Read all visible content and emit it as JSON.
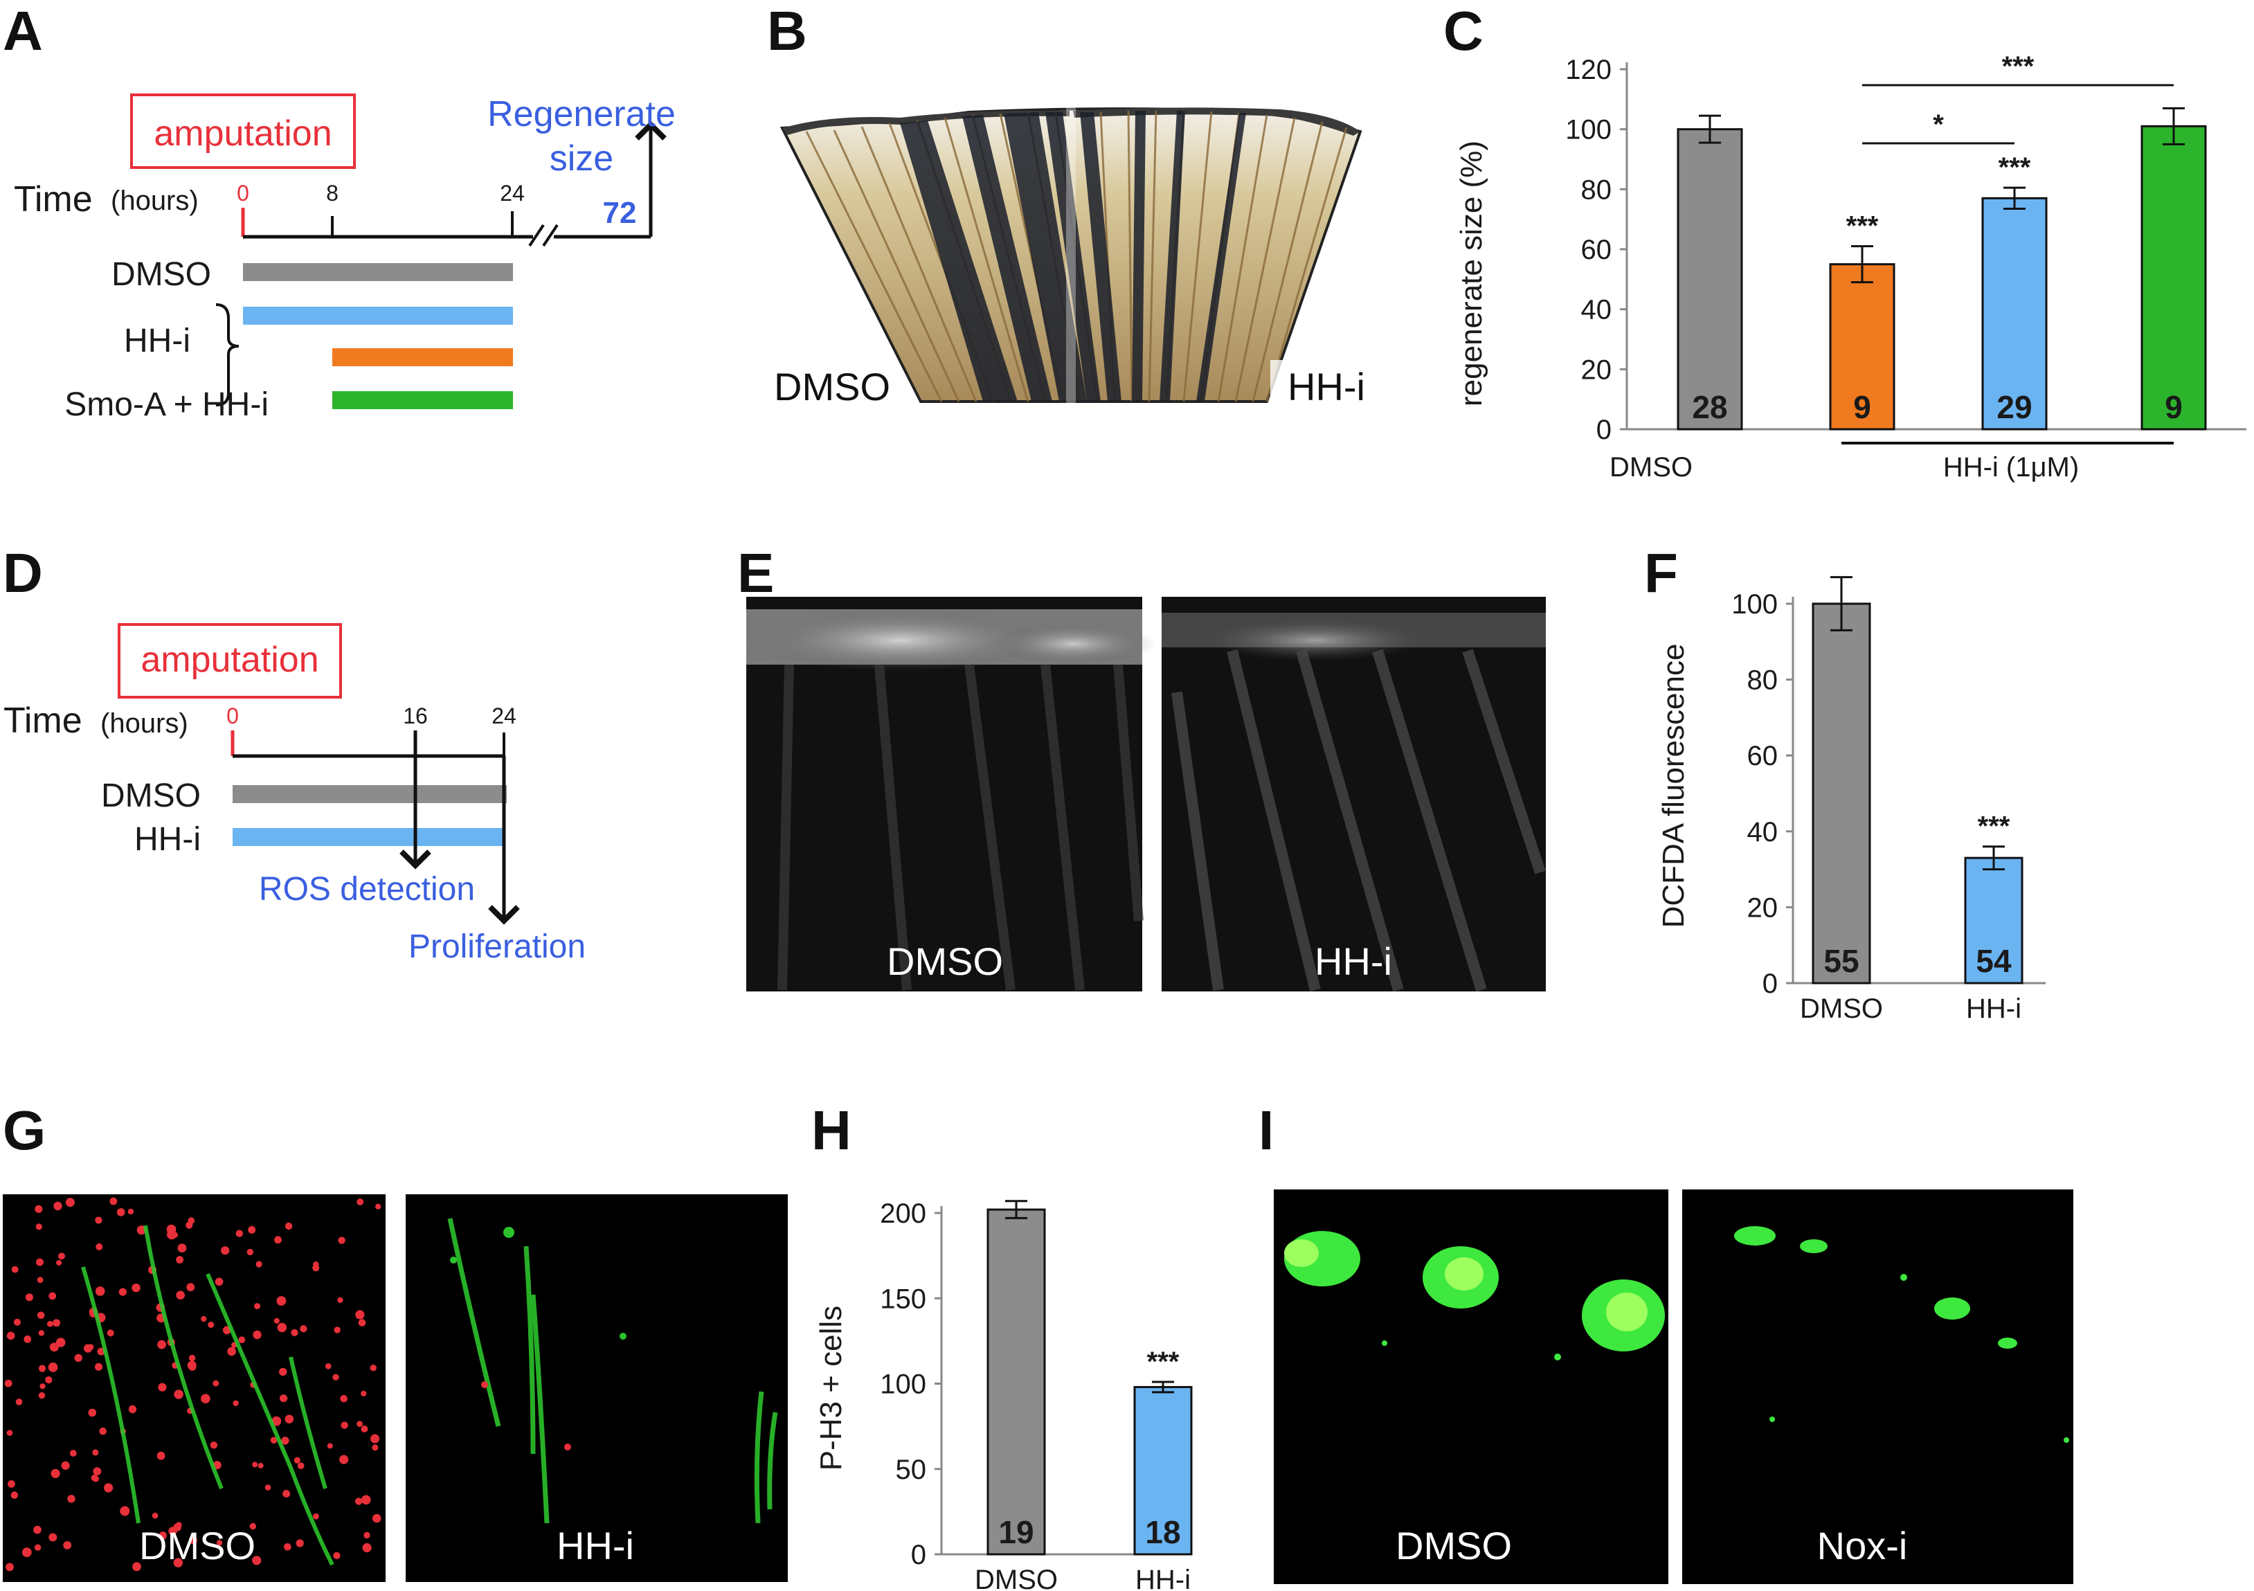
{
  "panel_labels": [
    "A",
    "B",
    "C",
    "D",
    "E",
    "F",
    "G",
    "H",
    "I"
  ],
  "panelA": {
    "event": "amputation",
    "time_label": "Time",
    "time_unit": "(hours)",
    "ticks": [
      "0",
      "8",
      "24",
      "72"
    ],
    "endpoint_line1": "Regenerate",
    "endpoint_line2": "size",
    "groups": [
      "DMSO",
      "HH-i",
      "Smo-A + HH-i"
    ],
    "colors": {
      "DMSO": "#8c8c8c",
      "HHi_full": "#6bb4f2",
      "HHi_late": "#f07a1f",
      "SmoA": "#2cb52c"
    }
  },
  "panelB": {
    "left_label": "DMSO",
    "right_label": "HH-i"
  },
  "panelD": {
    "event": "amputation",
    "time_label": "Time",
    "time_unit": "(hours)",
    "ticks": [
      "0",
      "16",
      "24"
    ],
    "groups": [
      "DMSO",
      "HH-i"
    ],
    "readout1": "ROS detection",
    "readout2": "Proliferation"
  },
  "panelE": {
    "left_label": "DMSO",
    "right_label": "HH-i"
  },
  "panelG": {
    "left_label": "DMSO",
    "right_label": "HH-i"
  },
  "panelI": {
    "left_label": "DMSO",
    "right_label": "Nox-i"
  },
  "chart_data": [
    {
      "panel": "C",
      "type": "bar",
      "ylabel": "regenerate size (%)",
      "ylim": [
        0,
        120
      ],
      "yticks": [
        0,
        20,
        40,
        60,
        80,
        100,
        120
      ],
      "categories": [
        "DMSO",
        "",
        "",
        ""
      ],
      "group_label": "HH-i (1μM)",
      "values": [
        100,
        55,
        77,
        101
      ],
      "errors": [
        4.5,
        6,
        3.5,
        6
      ],
      "n": [
        "28",
        "9",
        "29",
        "9"
      ],
      "colors": [
        "#8c8c8c",
        "#f07a1f",
        "#6bb4f2",
        "#2cb52c"
      ],
      "bar_sig": [
        "",
        "***",
        "***",
        ""
      ],
      "brackets": [
        {
          "from": 1,
          "to": 2,
          "label": "*"
        },
        {
          "from": 1,
          "to": 3,
          "label": "***"
        }
      ]
    },
    {
      "panel": "F",
      "type": "bar",
      "ylabel": "DCFDA fluorescence",
      "ylim": [
        0,
        100
      ],
      "yticks": [
        0,
        20,
        40,
        60,
        80,
        100
      ],
      "categories": [
        "DMSO",
        "HH-i"
      ],
      "values": [
        100,
        33
      ],
      "errors": [
        7,
        3
      ],
      "n": [
        "55",
        "54"
      ],
      "colors": [
        "#8c8c8c",
        "#6bb4f2"
      ],
      "bar_sig": [
        "",
        "***"
      ]
    },
    {
      "panel": "H",
      "type": "bar",
      "ylabel": "P-H3 + cells",
      "ylim": [
        0,
        200
      ],
      "yticks": [
        0,
        50,
        100,
        150,
        200
      ],
      "categories": [
        "DMSO",
        "HH-i"
      ],
      "values": [
        202,
        98
      ],
      "errors": [
        5,
        3
      ],
      "n": [
        "19",
        "18"
      ],
      "colors": [
        "#8c8c8c",
        "#6bb4f2"
      ],
      "bar_sig": [
        "",
        "***"
      ]
    }
  ]
}
